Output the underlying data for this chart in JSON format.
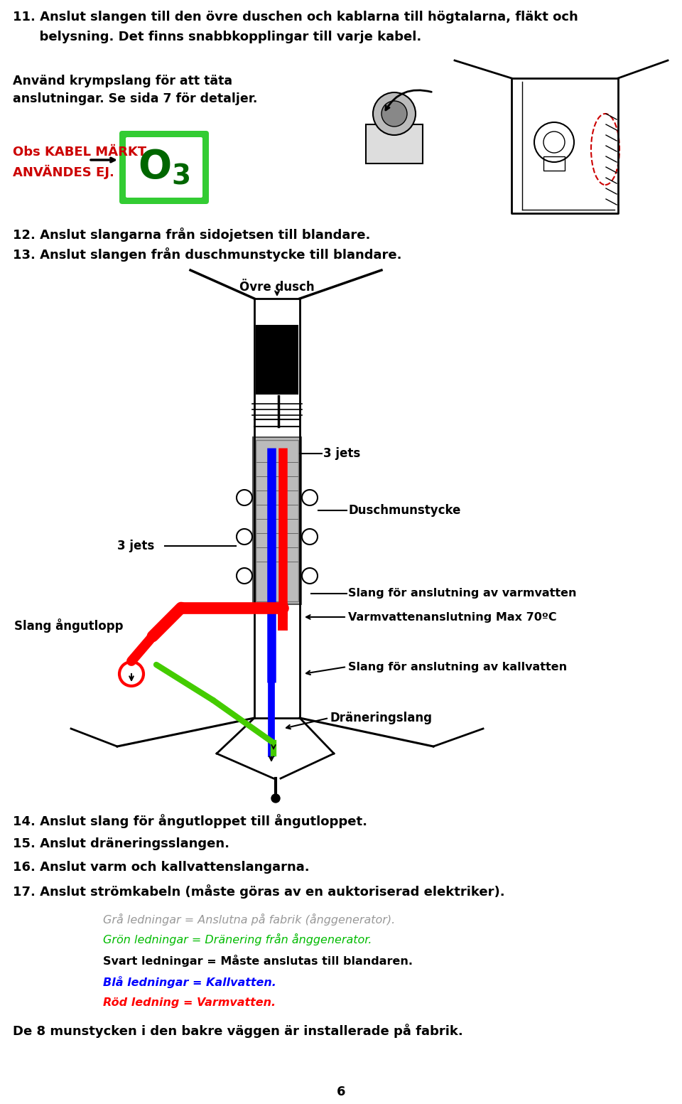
{
  "bg_color": "#ffffff",
  "page_number": "6",
  "line11": "11. Anslut slangen till den övre duschen och kablarna till högtalarna, fläkt och",
  "line11b": "      belysning. Det finns snabbkopplingar till varje kabel.",
  "line_krympslang1": "Använd krympslang för att täta",
  "line_krympslang2": "anslutningar. Se sida 7 för detaljer.",
  "obs_label1": "Obs KABEL MÄRKT",
  "obs_label2": "ANVÄNDES EJ.",
  "line12": "12. Anslut slangarna från sidojetsen till blandare.",
  "line13": "13. Anslut slangen från duschmunstycke till blandare.",
  "label_ovre_dusch": "Övre dusch",
  "label_3jets_top": "3 jets",
  "label_3jets_left": "3 jets",
  "label_duschmunstycke": "Duschmunstycke",
  "label_slang_angutlopp": "Slang ångutlopp",
  "label_slang_varm": "Slang för anslutning av varmvatten",
  "label_varmvatten": "Varmvattenanslutning Max 70ºC",
  "label_slang_kall": "Slang för anslutning av kallvatten",
  "label_draneringslang": "Dräneringslang",
  "line14": "14. Anslut slang för ångutloppet till ångutloppet.",
  "line15": "15. Anslut dräneringsslangen.",
  "line16": "16. Anslut varm och kallvattenslangarna.",
  "line17": "17. Anslut strömkabeln (måste göras av en auktoriserad elektriker).",
  "legend1": "Grå ledningar = Anslutna på fabrik (ånggenerator).",
  "legend2": "Grön ledningar = Dränering från ånggenerator.",
  "legend3": "Svart ledningar = Måste anslutas till blandaren.",
  "legend4": "Blå ledningar = Kallvatten.",
  "legend5": "Röd ledning = Varmvatten.",
  "line_de8": "De 8 munstycken i den bakre väggen är installerade på fabrik.",
  "color_red": "#ff0000",
  "color_green": "#00bb00",
  "color_blue": "#0000ff",
  "color_gray": "#999999",
  "color_black": "#000000",
  "color_obs_red": "#cc0000",
  "color_green_box": "#33cc33",
  "color_dark_green": "#006600",
  "color_pipe_blue": "#0000ff",
  "color_pipe_red": "#ff0000",
  "color_drain_green": "#44cc00"
}
